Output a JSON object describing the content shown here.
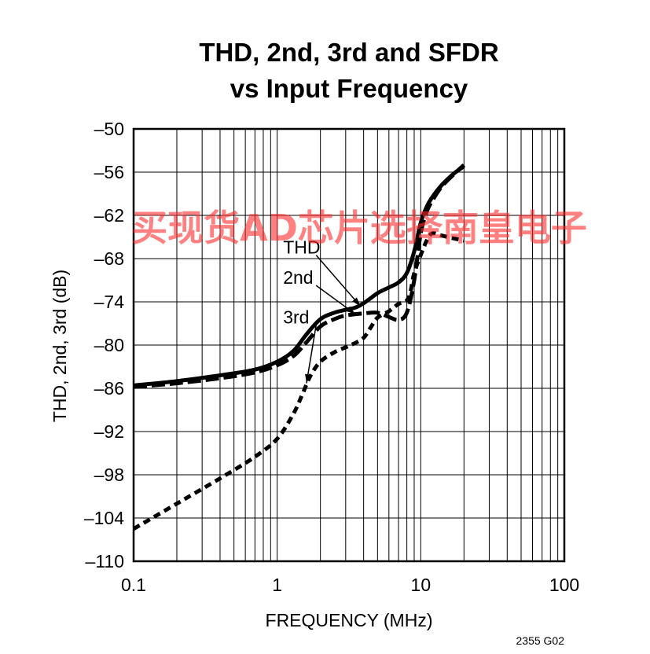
{
  "chart_data": {
    "type": "line",
    "title_lines": [
      "THD, 2nd, 3rd and SFDR",
      "vs Input Frequency"
    ],
    "xlabel": "FREQUENCY (MHz)",
    "ylabel": "THD, 2nd, 3rd (dB)",
    "x_scale": "log",
    "xlim": [
      0.1,
      100
    ],
    "ylim": [
      -110,
      -50
    ],
    "x_ticks": [
      0.1,
      1,
      10,
      100
    ],
    "x_tick_labels": [
      "0.1",
      "1",
      "10",
      "100"
    ],
    "y_ticks": [
      -110,
      -104,
      -98,
      -92,
      -86,
      -80,
      -74,
      -68,
      -62,
      -56,
      -50
    ],
    "y_tick_labels": [
      "–110",
      "–104",
      "–98",
      "–92",
      "–86",
      "–80",
      "–74",
      "–68",
      "–62",
      "–56",
      "–50"
    ],
    "grid": true,
    "series": [
      {
        "name": "THD",
        "style": "solid",
        "points": [
          [
            0.1,
            -85.6
          ],
          [
            0.2,
            -85
          ],
          [
            0.4,
            -84.2
          ],
          [
            0.7,
            -83.4
          ],
          [
            1,
            -82.3
          ],
          [
            1.3,
            -80.8
          ],
          [
            1.6,
            -78.5
          ],
          [
            2,
            -76.4
          ],
          [
            2.5,
            -75.5
          ],
          [
            3,
            -75.1
          ],
          [
            3.5,
            -74.8
          ],
          [
            4,
            -74.2
          ],
          [
            5,
            -72.8
          ],
          [
            6,
            -72
          ],
          [
            7,
            -71.3
          ],
          [
            8,
            -70
          ],
          [
            9,
            -67
          ],
          [
            10,
            -63
          ],
          [
            11,
            -60.8
          ],
          [
            12,
            -59.5
          ],
          [
            14,
            -57.8
          ],
          [
            17,
            -56.2
          ],
          [
            20,
            -55.2
          ]
        ]
      },
      {
        "name": "2nd",
        "style": "dashed",
        "points": [
          [
            0.1,
            -85.8
          ],
          [
            0.2,
            -85.3
          ],
          [
            0.4,
            -84.6
          ],
          [
            0.7,
            -83.8
          ],
          [
            1,
            -82.8
          ],
          [
            1.3,
            -81.5
          ],
          [
            1.6,
            -79.6
          ],
          [
            2,
            -77.4
          ],
          [
            2.5,
            -76.4
          ],
          [
            3,
            -75.9
          ],
          [
            4,
            -75.6
          ],
          [
            5,
            -75.5
          ],
          [
            6,
            -76.1
          ],
          [
            7,
            -76.5
          ],
          [
            8,
            -75.5
          ],
          [
            9,
            -71
          ],
          [
            10,
            -64.5
          ],
          [
            11,
            -61.5
          ],
          [
            12,
            -60
          ],
          [
            14,
            -58
          ],
          [
            17,
            -56.3
          ],
          [
            20,
            -55
          ]
        ]
      },
      {
        "name": "3rd",
        "style": "dotted",
        "points": [
          [
            0.1,
            -105.5
          ],
          [
            0.2,
            -102
          ],
          [
            0.4,
            -98.5
          ],
          [
            0.7,
            -95.5
          ],
          [
            1,
            -93
          ],
          [
            1.3,
            -89.5
          ],
          [
            1.5,
            -86.8
          ],
          [
            1.7,
            -84.3
          ],
          [
            2,
            -82.3
          ],
          [
            2.5,
            -81
          ],
          [
            3,
            -80.3
          ],
          [
            3.5,
            -79.7
          ],
          [
            4,
            -79
          ],
          [
            4.5,
            -77.5
          ],
          [
            5,
            -76.2
          ],
          [
            6,
            -75.3
          ],
          [
            7,
            -74.3
          ],
          [
            8,
            -73.8
          ],
          [
            8.5,
            -72.5
          ],
          [
            9,
            -70
          ],
          [
            10,
            -67.5
          ],
          [
            11,
            -65.5
          ],
          [
            12,
            -64.5
          ],
          [
            14,
            -64.8
          ],
          [
            17,
            -65.2
          ],
          [
            20,
            -65.5
          ]
        ]
      }
    ],
    "annotations": [
      {
        "text": "THD",
        "x": 1.1,
        "y": -67.3,
        "arrow_to": [
          3.8,
          -74.6
        ]
      },
      {
        "text": "2nd",
        "x": 1.1,
        "y": -71.5,
        "arrow_to": [
          3.5,
          -75.7
        ]
      },
      {
        "text": "3rd",
        "x": 1.1,
        "y": -77,
        "arrow_to": [
          1.6,
          -85.3
        ]
      }
    ],
    "figure_code": "2355 G02"
  },
  "watermark": "买现货AD芯片选择南皇电子"
}
